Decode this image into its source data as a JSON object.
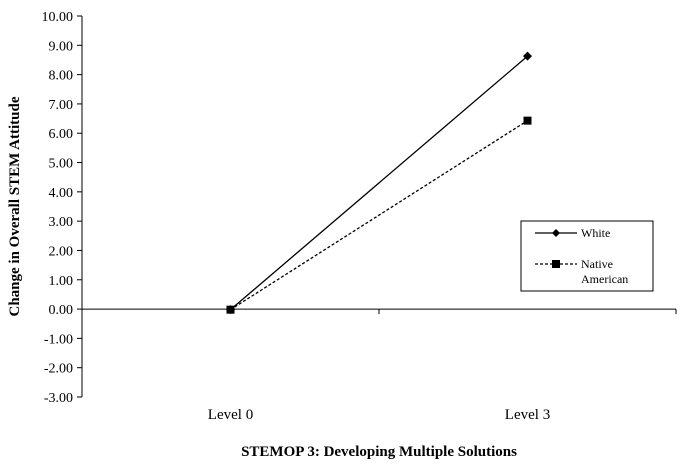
{
  "chart_data": {
    "type": "line",
    "title": "",
    "xlabel": "STEMOP 3: Developing Multiple Solutions",
    "ylabel": "Change in Overall STEM Attitude",
    "categories": [
      "Level 0",
      "Level 3"
    ],
    "ylim": [
      -3.0,
      10.0
    ],
    "ytick_step": 1.0,
    "yticks": [
      "10.00",
      "9.00",
      "8.00",
      "7.00",
      "6.00",
      "5.00",
      "4.00",
      "3.00",
      "2.00",
      "1.00",
      "0.00",
      "-1.00",
      "-2.00",
      "-3.00"
    ],
    "grid": false,
    "legend_position": "right",
    "series": [
      {
        "name": "White",
        "values": [
          -0.02,
          8.63
        ],
        "marker": "diamond",
        "line": "solid",
        "color": "#000000"
      },
      {
        "name": "Native American",
        "values": [
          -0.02,
          6.43
        ],
        "marker": "square",
        "line": "dashed",
        "color": "#000000"
      }
    ]
  },
  "legend": {
    "items": [
      {
        "line1": "White",
        "line2": ""
      },
      {
        "line1": "Native",
        "line2": "American"
      }
    ]
  }
}
